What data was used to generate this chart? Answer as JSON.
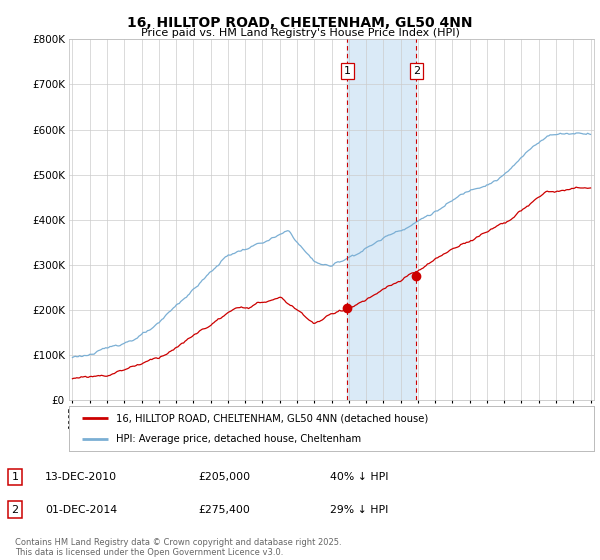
{
  "title": "16, HILLTOP ROAD, CHELTENHAM, GL50 4NN",
  "subtitle": "Price paid vs. HM Land Registry's House Price Index (HPI)",
  "legend_line1": "16, HILLTOP ROAD, CHELTENHAM, GL50 4NN (detached house)",
  "legend_line2": "HPI: Average price, detached house, Cheltenham",
  "footnote": "Contains HM Land Registry data © Crown copyright and database right 2025.\nThis data is licensed under the Open Government Licence v3.0.",
  "transaction1_date": "13-DEC-2010",
  "transaction1_price": "£205,000",
  "transaction1_hpi": "40% ↓ HPI",
  "transaction2_date": "01-DEC-2014",
  "transaction2_price": "£275,400",
  "transaction2_hpi": "29% ↓ HPI",
  "hpi_color": "#7bafd4",
  "price_color": "#cc0000",
  "marker_color": "#cc0000",
  "vline_color": "#cc0000",
  "shade_color": "#daeaf7",
  "grid_color": "#cccccc",
  "bg_color": "#ffffff",
  "ylim": [
    0,
    800000
  ],
  "ytick_vals": [
    0,
    100000,
    200000,
    300000,
    400000,
    500000,
    600000,
    700000,
    800000
  ],
  "ytick_labels": [
    "£0",
    "£100K",
    "£200K",
    "£300K",
    "£400K",
    "£500K",
    "£600K",
    "£700K",
    "£800K"
  ],
  "year_start": 1995,
  "year_end": 2025,
  "transaction1_year": 2010.92,
  "transaction2_year": 2014.92,
  "transaction1_price_val": 205000,
  "transaction2_price_val": 275400
}
